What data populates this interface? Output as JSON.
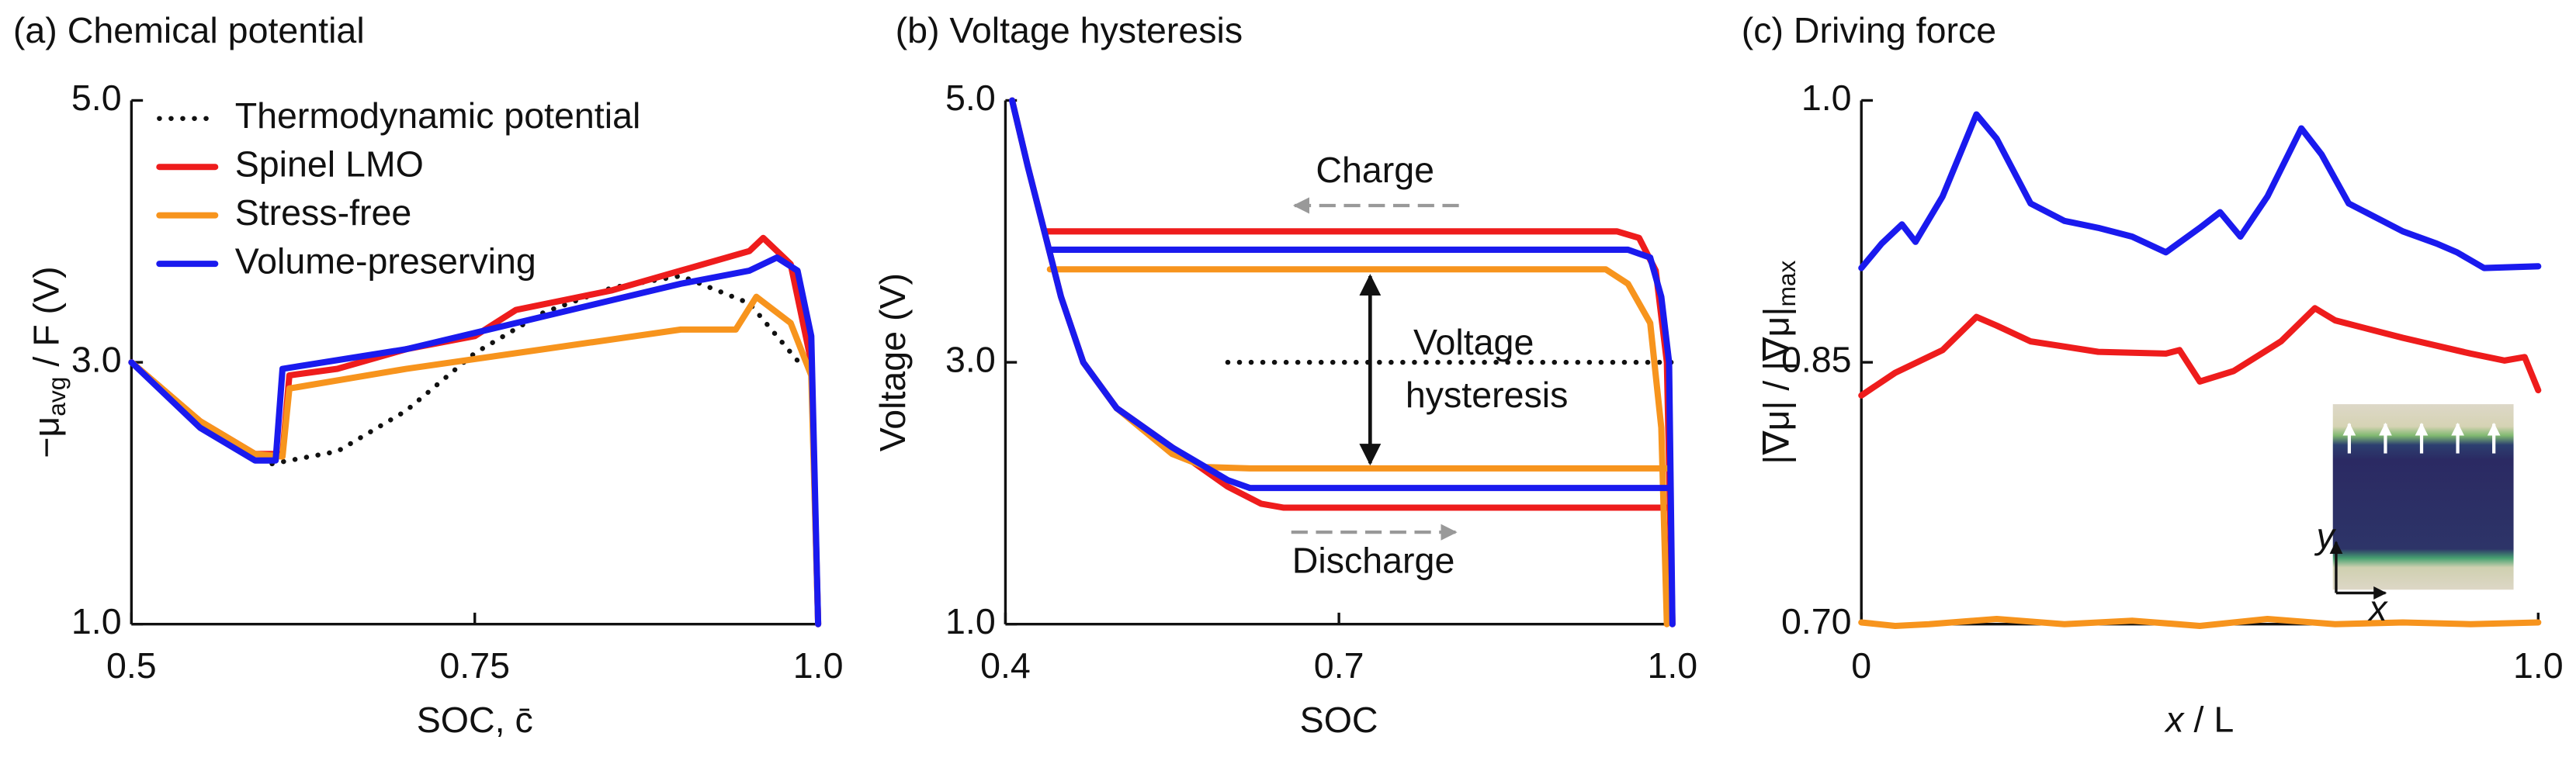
{
  "chart_data": [
    {
      "type": "line",
      "title": "(a) Chemical potential",
      "ylabel": "−μ",
      "ylabel_sub": "avg",
      "ylabel_rest": " / F (V)",
      "xlabel": "SOC, c̄",
      "xlim": [
        0.5,
        1.0
      ],
      "xticks": [
        0.5,
        0.75,
        {
          "value": 1,
          "label": "1.0"
        }
      ],
      "ylim": [
        1,
        5
      ],
      "yticks": [
        {
          "value": 1,
          "label": "1.0"
        },
        {
          "value": 3,
          "label": "3.0"
        },
        {
          "value": 5,
          "label": "5.0"
        }
      ],
      "legend": "upper center",
      "series": [
        {
          "name": "Thermodynamic potential",
          "color": "#111111",
          "style": "dotted",
          "x": [
            0.5,
            0.55,
            0.6,
            0.65,
            0.7,
            0.75,
            0.8,
            0.85,
            0.9,
            0.95,
            0.99
          ],
          "values": [
            3.0,
            2.55,
            2.22,
            2.32,
            2.63,
            3.07,
            3.38,
            3.57,
            3.66,
            3.45,
            2.95
          ]
        },
        {
          "name": "Spinel LMO",
          "color": "#ee1c1c",
          "style": "solid",
          "x": [
            0.5,
            0.55,
            0.59,
            0.61,
            0.615,
            0.65,
            0.7,
            0.75,
            0.78,
            0.85,
            0.9,
            0.95,
            0.96,
            0.98,
            0.995,
            1.0
          ],
          "values": [
            3.0,
            2.55,
            2.3,
            2.3,
            2.9,
            2.95,
            3.1,
            3.2,
            3.4,
            3.55,
            3.7,
            3.85,
            3.95,
            3.75,
            3.0,
            1.0
          ]
        },
        {
          "name": "Stress-free",
          "color": "#f7941d",
          "style": "solid",
          "x": [
            0.5,
            0.55,
            0.59,
            0.61,
            0.615,
            0.7,
            0.8,
            0.9,
            0.94,
            0.955,
            0.98,
            0.995,
            1.0
          ],
          "values": [
            3.0,
            2.55,
            2.3,
            2.28,
            2.8,
            2.95,
            3.1,
            3.25,
            3.25,
            3.5,
            3.3,
            2.9,
            1.0
          ]
        },
        {
          "name": "Volume-preserving",
          "color": "#1a1aee",
          "style": "solid",
          "x": [
            0.5,
            0.55,
            0.59,
            0.605,
            0.61,
            0.7,
            0.8,
            0.9,
            0.95,
            0.97,
            0.985,
            0.995,
            1.0
          ],
          "values": [
            3.0,
            2.5,
            2.25,
            2.25,
            2.95,
            3.1,
            3.35,
            3.6,
            3.7,
            3.8,
            3.7,
            3.2,
            1.0
          ]
        }
      ]
    },
    {
      "type": "line",
      "title": "(b) Voltage hysteresis",
      "ylabel": "Voltage (V)",
      "xlabel": "SOC",
      "xlim": [
        0.4,
        1.0
      ],
      "xticks": [
        0.4,
        0.7,
        {
          "value": 1,
          "label": "1.0"
        }
      ],
      "ylim": [
        1,
        5
      ],
      "yticks": [
        {
          "value": 1,
          "label": "1.0"
        },
        {
          "value": 3,
          "label": "3.0"
        },
        {
          "value": 5,
          "label": "5.0"
        }
      ],
      "annotations": [
        "Charge",
        "Voltage",
        "hysteresis",
        "Discharge"
      ],
      "series": [
        {
          "color": "#111111",
          "style": "dotted",
          "x": [
            0.6,
            1.0
          ],
          "values": [
            3.0,
            3.0
          ]
        },
        {
          "color": "#ee1c1c",
          "style": "solid",
          "x": [
            0.435,
            0.95,
            0.97,
            0.985,
            0.995,
            1.0,
            null,
            0.406,
            0.42,
            0.435,
            0.45,
            0.47,
            0.5,
            0.55,
            0.6,
            0.63,
            0.65,
            0.995
          ],
          "values": [
            4.0,
            4.0,
            3.95,
            3.7,
            3.0,
            1.0,
            null,
            5.0,
            4.5,
            4.0,
            3.5,
            3.0,
            2.65,
            2.35,
            2.05,
            1.92,
            1.89,
            1.89
          ]
        },
        {
          "color": "#f7941d",
          "style": "solid",
          "x": [
            0.44,
            0.94,
            0.96,
            0.98,
            0.99,
            0.995,
            null,
            0.47,
            0.5,
            0.55,
            0.58,
            0.62,
            0.995
          ],
          "values": [
            3.71,
            3.71,
            3.6,
            3.3,
            2.5,
            1.0,
            null,
            3.0,
            2.65,
            2.3,
            2.2,
            2.19,
            2.19
          ]
        },
        {
          "color": "#1a1aee",
          "style": "solid",
          "x": [
            0.44,
            0.96,
            0.98,
            0.99,
            0.997,
            1.0,
            null,
            0.406,
            0.42,
            0.435,
            0.45,
            0.47,
            0.5,
            0.55,
            0.6,
            0.62,
            0.995
          ],
          "values": [
            3.86,
            3.86,
            3.8,
            3.5,
            3.0,
            1.0,
            null,
            5.0,
            4.5,
            4.0,
            3.5,
            3.0,
            2.65,
            2.35,
            2.1,
            2.04,
            2.04
          ]
        }
      ]
    },
    {
      "type": "line",
      "title": "(c) Driving force",
      "ylabel": "|∇μ| / |∇μ|",
      "ylabel_sub": "max",
      "xlabel": "x",
      "xlabel_rest": " / L",
      "xlim": [
        0,
        1
      ],
      "xticks": [
        0,
        {
          "value": 1,
          "label": "1.0"
        }
      ],
      "ylim": [
        0.7,
        1.0
      ],
      "yticks": [
        {
          "value": 0.7,
          "label": "0.70"
        },
        0.85,
        {
          "value": 1,
          "label": "1.0"
        }
      ],
      "inset": {
        "x_label": "x",
        "y_label": "y"
      },
      "series": [
        {
          "color": "#1a1aee",
          "style": "solid",
          "x": [
            0,
            0.03,
            0.06,
            0.08,
            0.12,
            0.17,
            0.2,
            0.25,
            0.3,
            0.35,
            0.4,
            0.45,
            0.5,
            0.53,
            0.56,
            0.6,
            0.65,
            0.68,
            0.72,
            0.8,
            0.85,
            0.88,
            0.92,
            1.0
          ],
          "values": [
            0.904,
            0.918,
            0.929,
            0.919,
            0.945,
            0.992,
            0.978,
            0.941,
            0.931,
            0.927,
            0.922,
            0.913,
            0.927,
            0.936,
            0.922,
            0.945,
            0.984,
            0.969,
            0.941,
            0.925,
            0.918,
            0.913,
            0.904,
            0.905
          ]
        },
        {
          "color": "#ee1c1c",
          "style": "solid",
          "x": [
            0,
            0.05,
            0.12,
            0.17,
            0.2,
            0.25,
            0.35,
            0.45,
            0.47,
            0.5,
            0.55,
            0.62,
            0.67,
            0.7,
            0.8,
            0.9,
            0.95,
            0.98,
            1.0
          ],
          "values": [
            0.831,
            0.844,
            0.857,
            0.876,
            0.871,
            0.862,
            0.856,
            0.855,
            0.857,
            0.839,
            0.845,
            0.862,
            0.881,
            0.874,
            0.864,
            0.855,
            0.851,
            0.853,
            0.834
          ]
        },
        {
          "color": "#f7941d",
          "style": "solid",
          "x": [
            0,
            0.05,
            0.1,
            0.2,
            0.3,
            0.4,
            0.5,
            0.6,
            0.7,
            0.8,
            0.9,
            1.0
          ],
          "values": [
            0.701,
            0.699,
            0.7,
            0.703,
            0.7,
            0.702,
            0.699,
            0.703,
            0.7,
            0.701,
            0.7,
            0.701
          ]
        }
      ]
    }
  ]
}
